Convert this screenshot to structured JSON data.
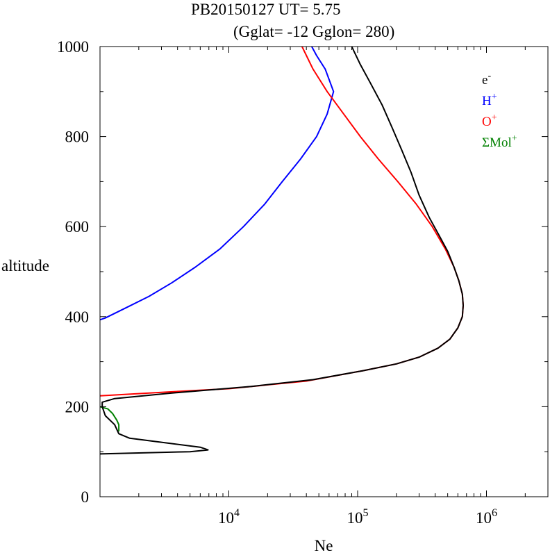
{
  "chart_data": {
    "type": "line",
    "title": "PB20150127   UT=  5.75",
    "subtitle": "(Gglat= -12   Gglon=  280)",
    "xlabel": "Ne",
    "ylabel": "altitude",
    "x_scale": "log",
    "xlim": [
      1000,
      3000000
    ],
    "ylim": [
      0,
      1000
    ],
    "x_ticks": [
      {
        "value": 10000,
        "base": "10",
        "exp": "4"
      },
      {
        "value": 100000,
        "base": "10",
        "exp": "5"
      },
      {
        "value": 1000000,
        "base": "10",
        "exp": "6"
      }
    ],
    "y_ticks": [
      0,
      200,
      400,
      600,
      800,
      1000
    ],
    "legend": {
      "position": "top-right",
      "entries": [
        {
          "base": "e",
          "sup": "-",
          "color": "#000000"
        },
        {
          "base": "H",
          "sup": "+",
          "color": "#0000ff"
        },
        {
          "base": "O",
          "sup": "+",
          "color": "#ff0000"
        },
        {
          "base": "ΣMol",
          "sup": "+",
          "color": "#008000"
        }
      ]
    },
    "series": [
      {
        "name": "e-",
        "color": "#000000",
        "points": [
          [
            1000,
            95
          ],
          [
            5000,
            100
          ],
          [
            6900,
            104
          ],
          [
            6000,
            110
          ],
          [
            1700,
            130
          ],
          [
            1400,
            140
          ],
          [
            1300,
            160
          ],
          [
            1100,
            180
          ],
          [
            1040,
            200
          ],
          [
            1040,
            210
          ],
          [
            1300,
            218
          ],
          [
            3500,
            230
          ],
          [
            15000,
            245
          ],
          [
            45000,
            260
          ],
          [
            110000,
            280
          ],
          [
            200000,
            295
          ],
          [
            300000,
            310
          ],
          [
            420000,
            330
          ],
          [
            520000,
            350
          ],
          [
            600000,
            375
          ],
          [
            650000,
            400
          ],
          [
            660000,
            425
          ],
          [
            650000,
            450
          ],
          [
            610000,
            480
          ],
          [
            560000,
            510
          ],
          [
            500000,
            545
          ],
          [
            430000,
            580
          ],
          [
            360000,
            620
          ],
          [
            300000,
            670
          ],
          [
            260000,
            720
          ],
          [
            220000,
            770
          ],
          [
            185000,
            820
          ],
          [
            155000,
            870
          ],
          [
            125000,
            920
          ],
          [
            105000,
            960
          ],
          [
            90000,
            1000
          ]
        ]
      },
      {
        "name": "H+",
        "color": "#0000ff",
        "points": [
          [
            1000,
            393
          ],
          [
            1100,
            397
          ],
          [
            1600,
            420
          ],
          [
            2400,
            445
          ],
          [
            3600,
            475
          ],
          [
            5500,
            510
          ],
          [
            8500,
            550
          ],
          [
            13000,
            600
          ],
          [
            19000,
            650
          ],
          [
            26000,
            700
          ],
          [
            36000,
            750
          ],
          [
            48000,
            800
          ],
          [
            58000,
            850
          ],
          [
            65000,
            900
          ],
          [
            56000,
            950
          ],
          [
            48000,
            980
          ],
          [
            44000,
            1000
          ]
        ]
      },
      {
        "name": "O+",
        "color": "#ff0000",
        "points": [
          [
            1000,
            224
          ],
          [
            3000,
            232
          ],
          [
            10000,
            240
          ],
          [
            40000,
            257
          ],
          [
            110000,
            280
          ],
          [
            200000,
            295
          ],
          [
            300000,
            310
          ],
          [
            420000,
            330
          ],
          [
            520000,
            350
          ],
          [
            600000,
            375
          ],
          [
            650000,
            400
          ],
          [
            660000,
            425
          ],
          [
            650000,
            450
          ],
          [
            610000,
            480
          ],
          [
            560000,
            510
          ],
          [
            480000,
            550
          ],
          [
            380000,
            600
          ],
          [
            285000,
            650
          ],
          [
            205000,
            700
          ],
          [
            145000,
            750
          ],
          [
            105000,
            800
          ],
          [
            78000,
            850
          ],
          [
            58000,
            900
          ],
          [
            45000,
            950
          ],
          [
            37000,
            1000
          ]
        ]
      },
      {
        "name": "ΣMol+",
        "color": "#008000",
        "points": [
          [
            1000,
            200
          ],
          [
            1150,
            195
          ],
          [
            1250,
            185
          ],
          [
            1350,
            170
          ],
          [
            1400,
            160
          ],
          [
            1400,
            145
          ]
        ]
      }
    ]
  }
}
